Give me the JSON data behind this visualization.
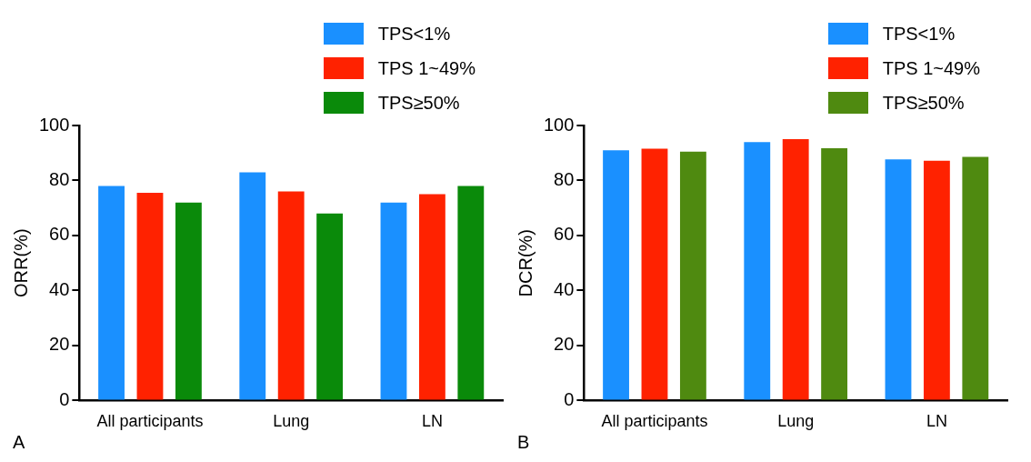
{
  "chart_data": [
    {
      "type": "bar",
      "ylabel": "ORR(%)",
      "categories": [
        "All participants",
        "Lung",
        "LN"
      ],
      "ylim": [
        0,
        100
      ],
      "yticks": [
        0,
        20,
        40,
        60,
        80,
        100
      ],
      "grid": false,
      "legend": "top right",
      "annotations": [
        "A"
      ],
      "series": [
        {
          "name": "TPS<1%",
          "color": "#1a90ff",
          "values": [
            78,
            83,
            72
          ]
        },
        {
          "name": "TPS 1~49%",
          "color": "#ff2200",
          "values": [
            75.5,
            76,
            75
          ]
        },
        {
          "name": "TPS≥50%",
          "color": "#0a8a0a",
          "values": [
            72,
            68,
            78
          ]
        }
      ]
    },
    {
      "type": "bar",
      "ylabel": "DCR(%)",
      "categories": [
        "All participants",
        "Lung",
        "LN"
      ],
      "ylim": [
        0,
        100
      ],
      "yticks": [
        0,
        20,
        40,
        60,
        80,
        100
      ],
      "grid": false,
      "legend": "top right",
      "annotations": [
        "B"
      ],
      "series": [
        {
          "name": "TPS<1%",
          "color": "#1a90ff",
          "values": [
            91,
            94,
            87.7
          ]
        },
        {
          "name": "TPS 1~49%",
          "color": "#ff2200",
          "values": [
            91.6,
            95,
            87.2
          ]
        },
        {
          "name": "TPS≥50%",
          "color": "#4f8a10",
          "values": [
            90.5,
            91.7,
            88.6
          ]
        }
      ]
    }
  ]
}
